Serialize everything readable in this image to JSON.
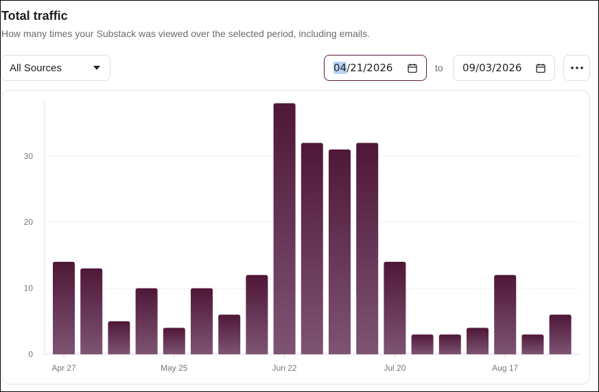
{
  "header": {
    "title": "Total traffic",
    "subtitle": "How many times your Substack was viewed over the selected period, including emails."
  },
  "controls": {
    "source_filter": "All Sources",
    "date_from_highlight": "04",
    "date_from_rest": "/21/2026",
    "to_label": "to",
    "date_to": "09/03/2026"
  },
  "colors": {
    "bar_top": "#4f1738",
    "bar_bottom": "#7e5473",
    "accent_border": "#5b1d43"
  },
  "chart_data": {
    "type": "bar",
    "values": [
      14,
      13,
      5,
      10,
      4,
      10,
      6,
      12,
      38,
      32,
      31,
      32,
      14,
      3,
      3,
      4,
      12,
      3,
      6
    ],
    "x_tick_labels": [
      "Apr 27",
      "May 25",
      "Jun 22",
      "Jul 20",
      "Aug 17"
    ],
    "x_tick_bar_index": [
      0,
      4,
      8,
      12,
      16
    ],
    "y_ticks": [
      0,
      10,
      20,
      30
    ],
    "ylim": [
      0,
      39
    ],
    "grid": true
  }
}
